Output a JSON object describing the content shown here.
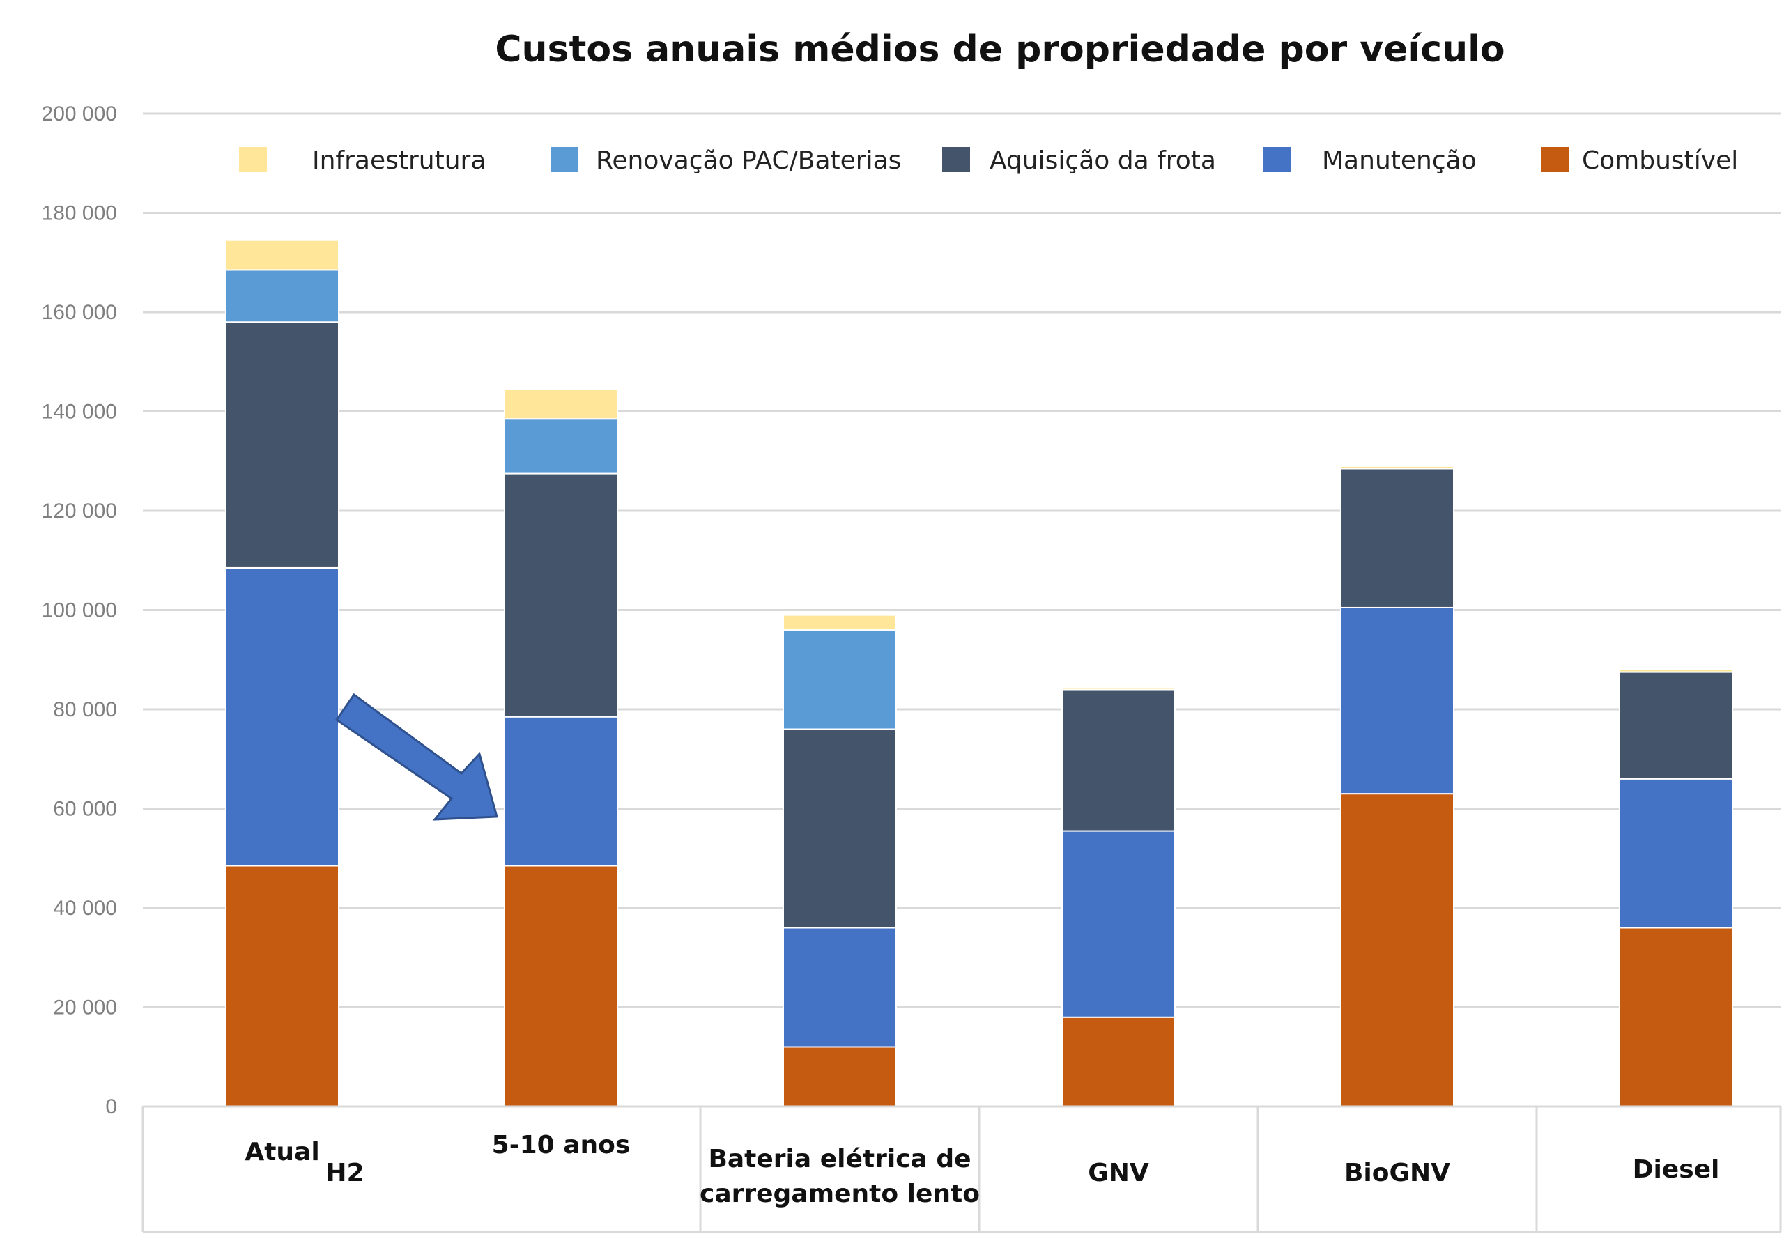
{
  "chart_data": {
    "type": "bar",
    "stacked": true,
    "title": "Custos anuais médios de propriedade por veículo",
    "xlabel": "",
    "ylabel": "",
    "ylim": [
      0,
      200000
    ],
    "yticks": [
      0,
      20000,
      40000,
      60000,
      80000,
      100000,
      120000,
      140000,
      160000,
      180000,
      200000
    ],
    "ytick_labels": [
      "0",
      "20 000",
      "40 000",
      "60 000",
      "80 000",
      "100 000",
      "120 000",
      "140 000",
      "160 000",
      "180 000",
      "200 000"
    ],
    "grid": true,
    "legend_position": "top",
    "categories": [
      "Atual",
      "5-10 anos",
      "Bateria elétrica de carregamento lento",
      "GNV",
      "BioGNV",
      "Diesel"
    ],
    "category_label_lines": [
      [
        "Atual"
      ],
      [
        "5-10 anos"
      ],
      [
        "Bateria elétrica de",
        "carregamento lento"
      ],
      [
        "GNV"
      ],
      [
        "BioGNV"
      ],
      [
        "Diesel"
      ]
    ],
    "group_labels": [
      {
        "label": "H2",
        "categories": [
          "Atual",
          "5-10 anos"
        ]
      }
    ],
    "annotations": [
      {
        "type": "arrow",
        "from": "Atual",
        "to": "5-10 anos",
        "color": "#4472C4"
      }
    ],
    "series": [
      {
        "name": "Combustível",
        "color": "#C55A11",
        "values": [
          48500,
          48500,
          12000,
          18000,
          63000,
          36000
        ]
      },
      {
        "name": "Manutenção",
        "color": "#4472C4",
        "values": [
          60000,
          30000,
          24000,
          37500,
          37500,
          30000
        ]
      },
      {
        "name": "Aquisição da frota",
        "color": "#44546A",
        "values": [
          49500,
          49000,
          40000,
          28500,
          28000,
          21500
        ]
      },
      {
        "name": "Renovação PAC/Baterias",
        "color": "#5B9BD5",
        "values": [
          10500,
          11000,
          20000,
          0,
          0,
          0
        ]
      },
      {
        "name": "Infraestrutura",
        "color": "#FFE699",
        "values": [
          6000,
          6000,
          3000,
          500,
          500,
          500
        ]
      }
    ],
    "legend_order": [
      "Infraestrutura",
      "Renovação PAC/Baterias",
      "Aquisição da frota",
      "Manutenção",
      "Combustível"
    ]
  }
}
